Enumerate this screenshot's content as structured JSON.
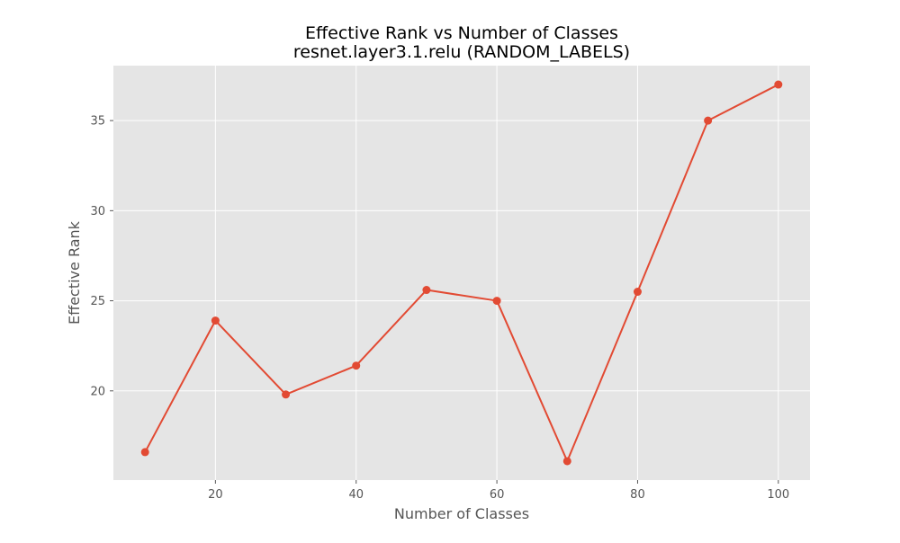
{
  "chart_data": {
    "type": "line",
    "title": "Effective Rank vs Number of Classes",
    "subtitle": "resnet.layer3.1.relu (RANDOM_LABELS)",
    "xlabel": "Number of Classes",
    "ylabel": "Effective Rank",
    "x": [
      10,
      20,
      30,
      40,
      50,
      60,
      70,
      80,
      90,
      100
    ],
    "series": [
      {
        "values": [
          16.6,
          23.9,
          19.8,
          21.4,
          25.6,
          25.0,
          16.1,
          25.5,
          35.0,
          37.0
        ]
      }
    ],
    "xlim": [
      5.5,
      104.5
    ],
    "ylim": [
      15.05,
      38.05
    ],
    "xticks": [
      20,
      40,
      60,
      80,
      100
    ],
    "yticks": [
      20,
      25,
      30,
      35
    ],
    "grid": true,
    "style": "ggplot",
    "colors": {
      "series": "#E24A33",
      "plot_background": "#E5E5E5",
      "grid": "#FFFFFF"
    }
  }
}
